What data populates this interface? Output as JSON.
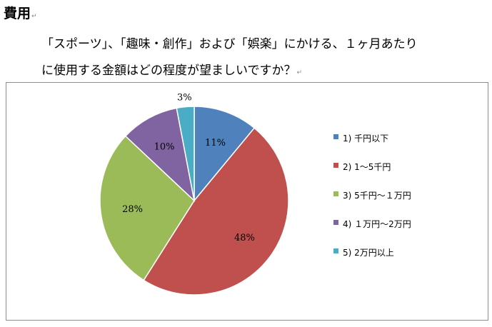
{
  "heading": "費用",
  "paragraph_mark": "↵",
  "question": {
    "line1": "「スポーツ」、「趣味・創作」および「娯楽」にかける、１ヶ月あたり",
    "line2": "に使用する金額はどの程度が望ましいですか？"
  },
  "chart_data": {
    "type": "pie",
    "title": "",
    "categories": [
      "1) 千円以下",
      "2) 1～5千円",
      "3) 5千円～１万円",
      "4) １万円～2万円",
      "5) 2万円以上"
    ],
    "values": [
      11,
      48,
      28,
      10,
      3
    ],
    "data_labels": [
      "11%",
      "48%",
      "28%",
      "10%",
      "3%"
    ],
    "colors": [
      "#4f81bd",
      "#c0504d",
      "#9bbb59",
      "#8064a2",
      "#4bacc6"
    ],
    "legend_position": "right",
    "start_angle": "12 o'clock",
    "direction": "clockwise"
  }
}
